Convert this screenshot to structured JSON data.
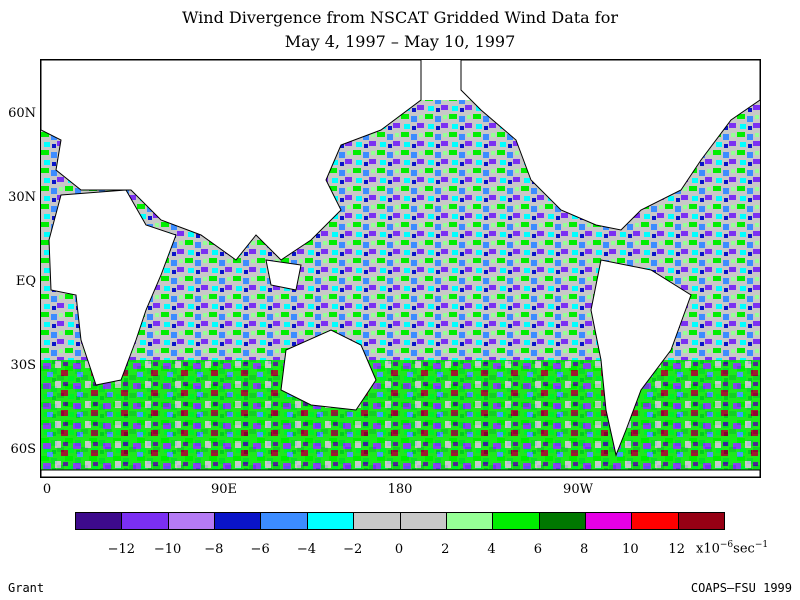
{
  "title_line1": "Wind Divergence from NSCAT Gridded Wind Data for",
  "title_line2": "May 4, 1997 – May 10, 1997",
  "lat_labels": [
    "60N",
    "30N",
    "EQ",
    "30S",
    "60S"
  ],
  "lon_labels": [
    "0",
    "90E",
    "180",
    "90W"
  ],
  "colorbar": {
    "colors": [
      "#3d0a8c",
      "#7b2ff2",
      "#b57bf5",
      "#0a14c8",
      "#3c8cff",
      "#00ffff",
      "#c8c8c8",
      "#c8c8c8",
      "#96ff96",
      "#00ee00",
      "#007800",
      "#e600e6",
      "#ff0000",
      "#960014"
    ],
    "labels": [
      "−12",
      "−10",
      "−8",
      "−6",
      "−4",
      "−2",
      "0",
      "2",
      "4",
      "6",
      "8",
      "10",
      "12"
    ],
    "units_prefix": "x10",
    "units_exp": "−6",
    "units_suffix": "sec",
    "units_suffix_exp": "−1"
  },
  "footer_left": "Grant",
  "footer_right": "COAPS–FSU 1999"
}
